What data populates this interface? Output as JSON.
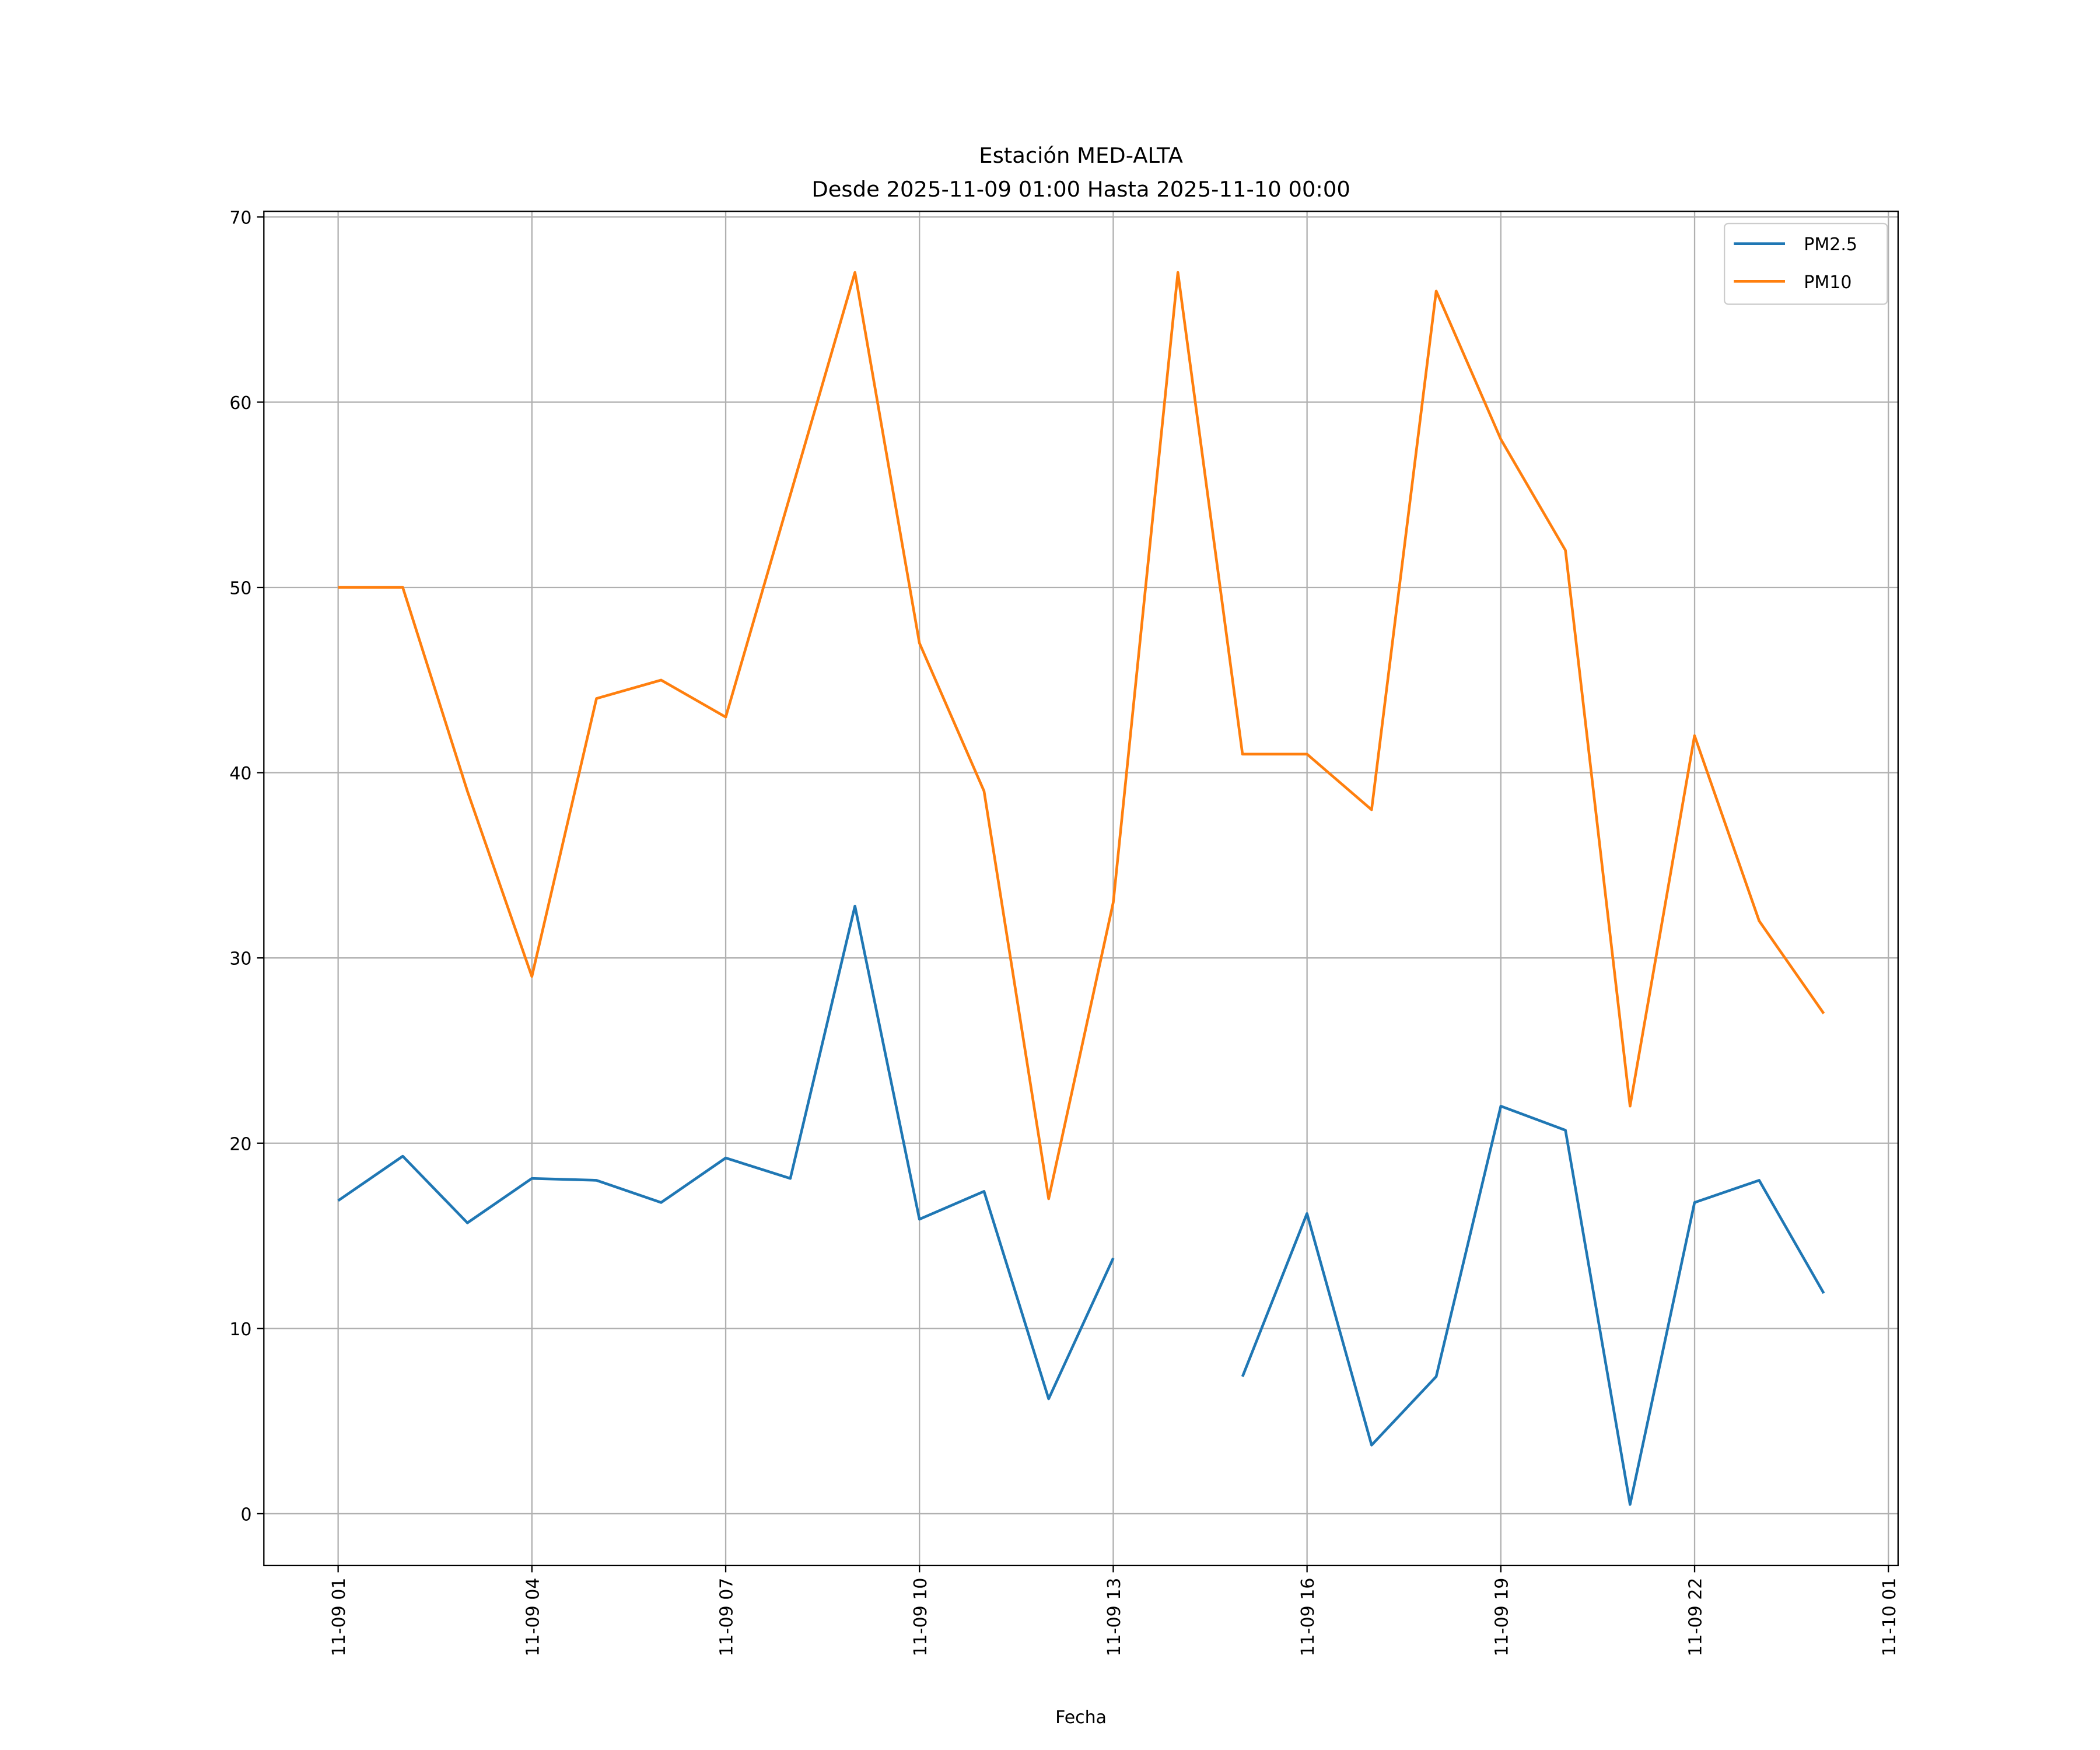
{
  "chart_data": {
    "type": "line",
    "title": "Estación MED-ALTA",
    "subtitle": "Desde 2025-11-09 01:00 Hasta 2025-11-10 00:00",
    "xlabel": "Fecha",
    "ylabel": "",
    "x": [
      "2025-11-09 01:00",
      "2025-11-09 02:00",
      "2025-11-09 03:00",
      "2025-11-09 04:00",
      "2025-11-09 05:00",
      "2025-11-09 06:00",
      "2025-11-09 07:00",
      "2025-11-09 08:00",
      "2025-11-09 09:00",
      "2025-11-09 10:00",
      "2025-11-09 11:00",
      "2025-11-09 12:00",
      "2025-11-09 13:00",
      "2025-11-09 14:00",
      "2025-11-09 15:00",
      "2025-11-09 16:00",
      "2025-11-09 17:00",
      "2025-11-09 18:00",
      "2025-11-09 19:00",
      "2025-11-09 20:00",
      "2025-11-09 21:00",
      "2025-11-09 22:00",
      "2025-11-09 23:00",
      "2025-11-10 00:00"
    ],
    "series": [
      {
        "name": "PM2.5",
        "color": "#1f77b4",
        "values": [
          16.9,
          19.3,
          15.7,
          18.1,
          18.0,
          16.8,
          19.2,
          18.1,
          32.8,
          15.9,
          17.4,
          6.2,
          13.8,
          null,
          7.4,
          16.2,
          3.7,
          7.4,
          22.0,
          20.7,
          0.5,
          16.8,
          18.0,
          11.9
        ]
      },
      {
        "name": "PM10",
        "color": "#ff7f0e",
        "values": [
          50,
          50,
          39,
          29,
          44,
          45,
          43,
          55,
          67,
          47,
          39,
          17,
          33,
          67,
          41,
          41,
          38,
          66,
          58,
          52,
          22,
          42,
          32,
          27
        ]
      }
    ],
    "xticks": [
      "11-09 01",
      "11-09 04",
      "11-09 07",
      "11-09 10",
      "11-09 13",
      "11-09 16",
      "11-09 19",
      "11-09 22",
      "11-10 01"
    ],
    "xtick_hours": [
      0,
      3,
      6,
      9,
      12,
      15,
      18,
      21,
      24
    ],
    "yticks": [
      0,
      10,
      20,
      30,
      40,
      50,
      60,
      70
    ],
    "ylim": [
      -2.8,
      70.3
    ],
    "xlim_hours": [
      -1.15,
      24.15
    ],
    "grid": true,
    "legend_position": "top-right"
  }
}
